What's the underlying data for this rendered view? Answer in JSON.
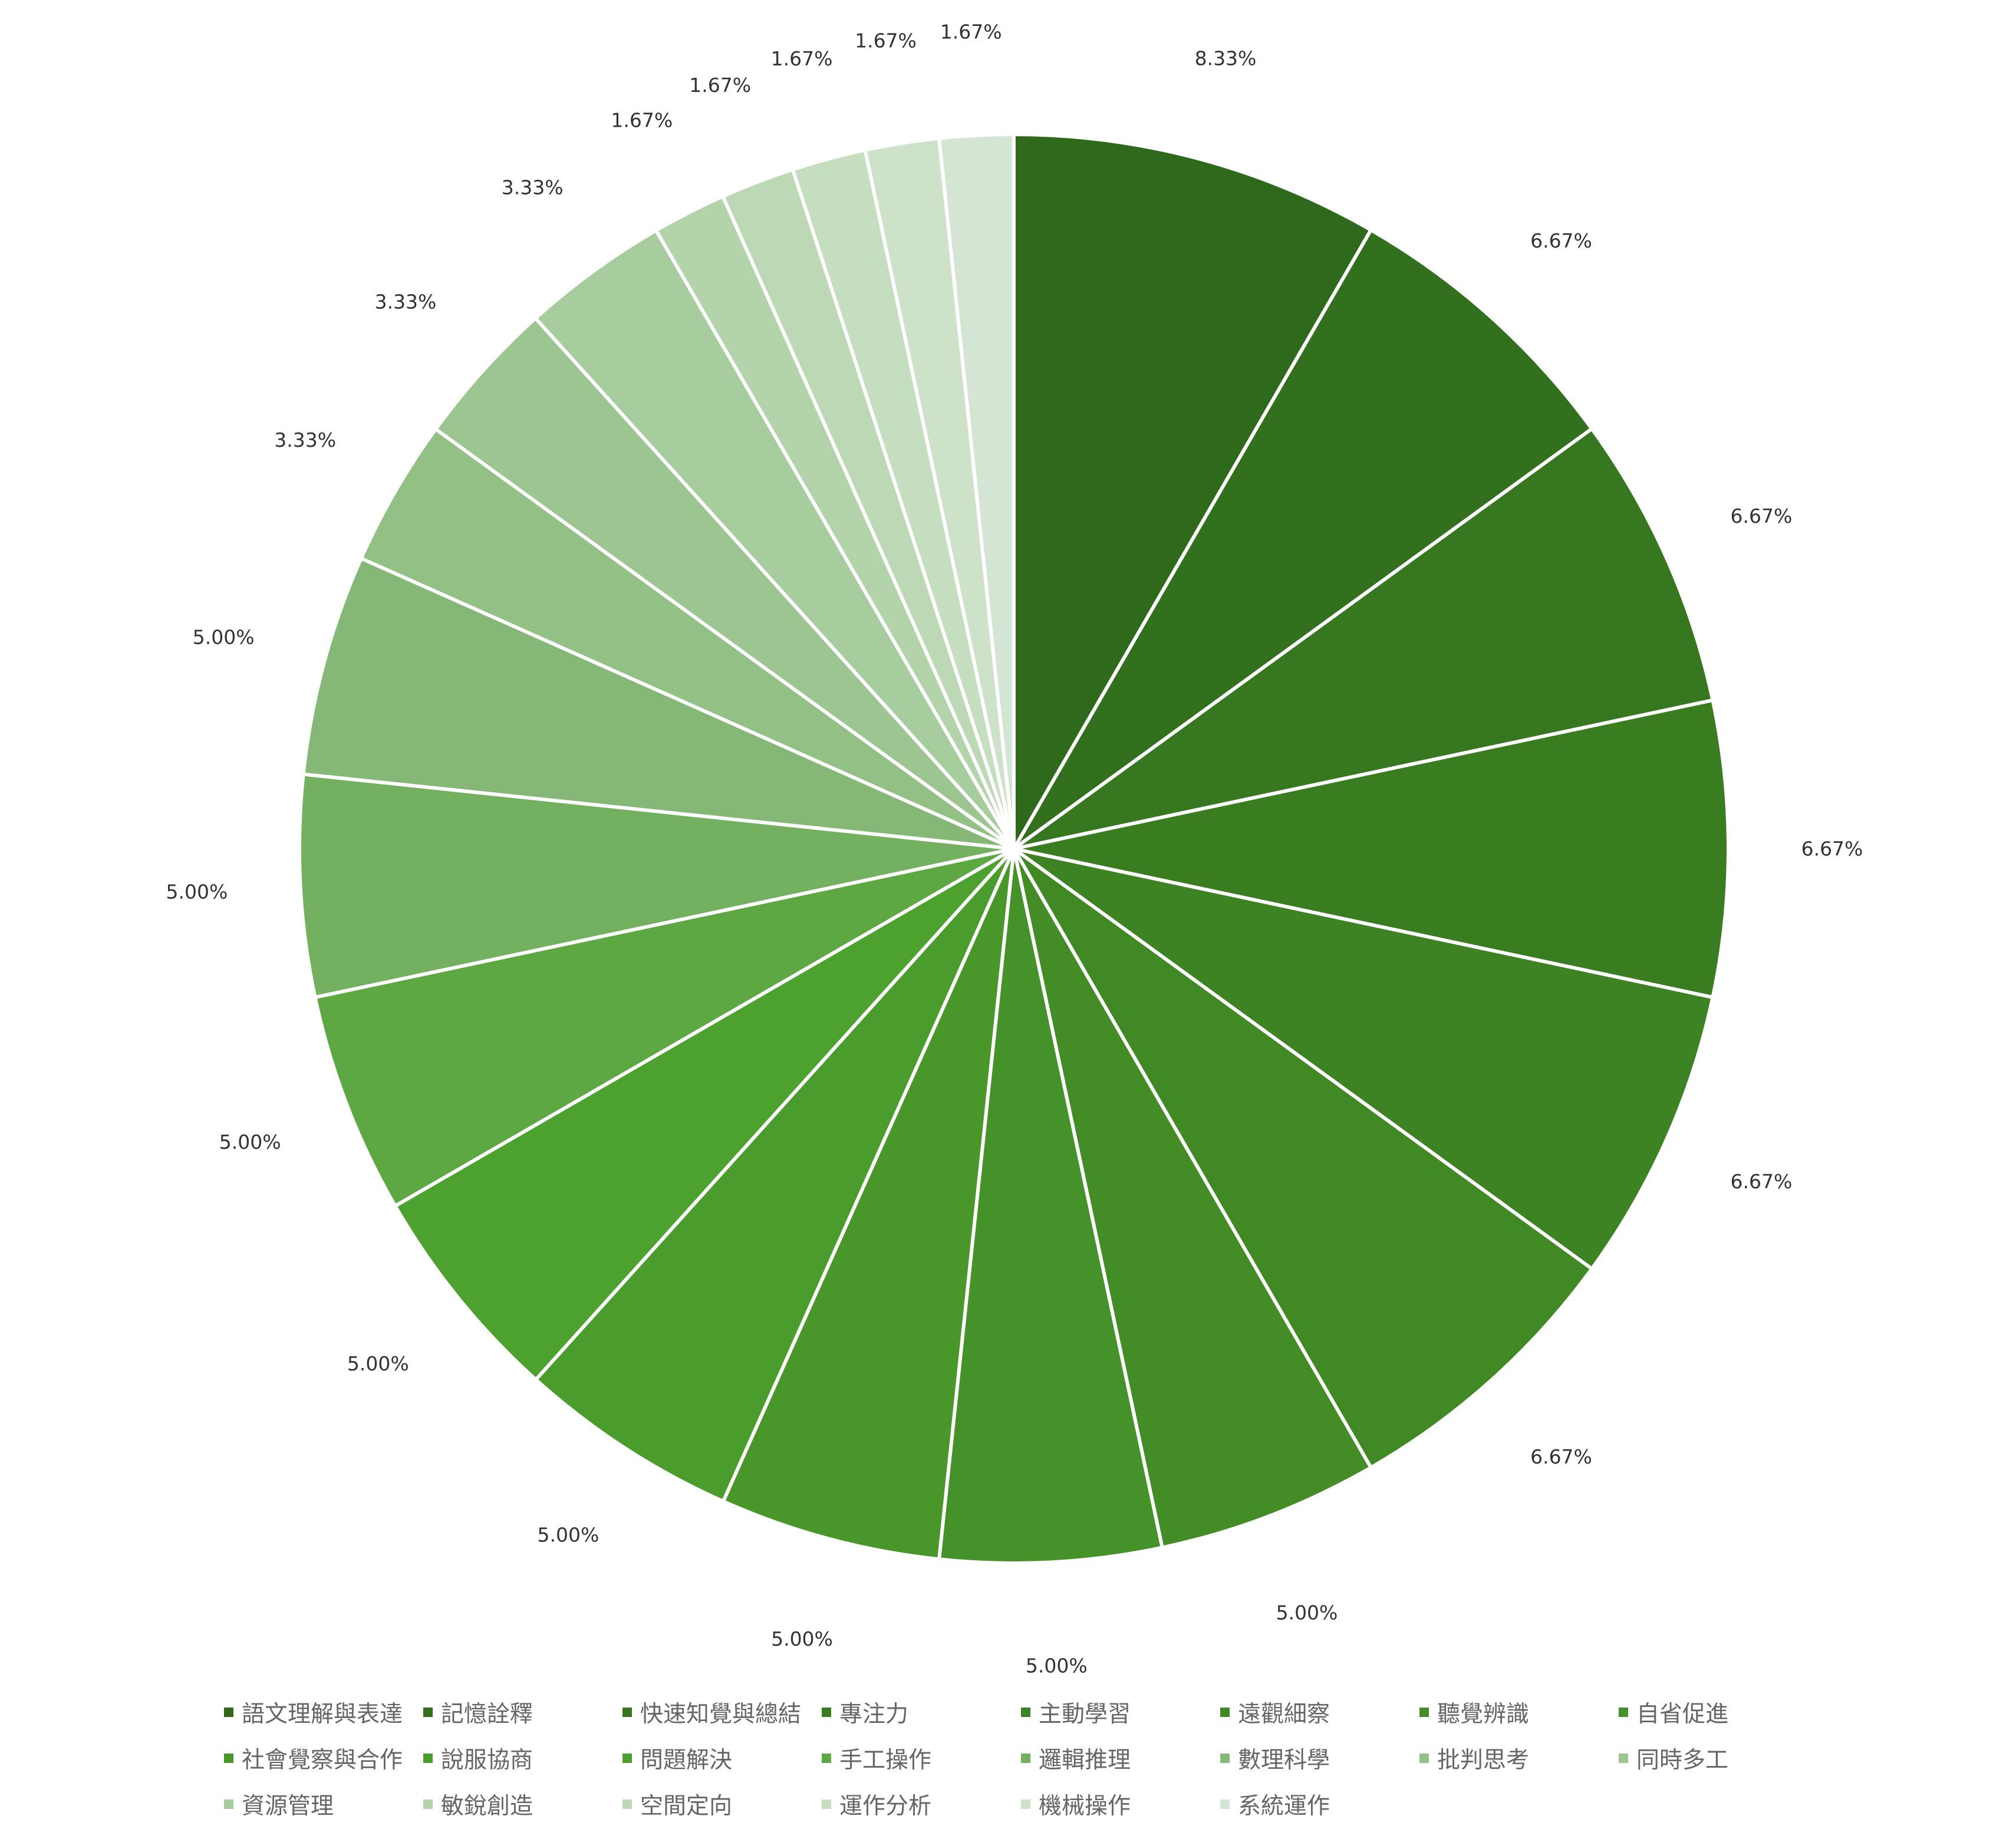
{
  "chart_data": {
    "type": "pie",
    "title": "",
    "slice_order": "clockwise-from-top",
    "legend_position": "bottom",
    "slices": [
      {
        "label": "語文理解與表達",
        "value": 8.33,
        "display": "8.33%",
        "color": "#2f6a1c"
      },
      {
        "label": "記憶詮釋",
        "value": 6.67,
        "display": "6.67%",
        "color": "#33701d"
      },
      {
        "label": "快速知覺與總結",
        "value": 6.67,
        "display": "6.67%",
        "color": "#37771f"
      },
      {
        "label": "專注力",
        "value": 6.67,
        "display": "6.67%",
        "color": "#3a7d21"
      },
      {
        "label": "主動學習",
        "value": 6.67,
        "display": "6.67%",
        "color": "#3d8323"
      },
      {
        "label": "遠觀細察",
        "value": 6.67,
        "display": "6.67%",
        "color": "#418925"
      },
      {
        "label": "聽覺辨識",
        "value": 5.0,
        "display": "5.00%",
        "color": "#448d26"
      },
      {
        "label": "自省促進",
        "value": 5.0,
        "display": "5.00%",
        "color": "#46922a"
      },
      {
        "label": "社會覺察與合作",
        "value": 5.0,
        "display": "5.00%",
        "color": "#49972b"
      },
      {
        "label": "說服協商",
        "value": 5.0,
        "display": "5.00%",
        "color": "#4a9c2c"
      },
      {
        "label": "問題解決",
        "value": 5.0,
        "display": "5.00%",
        "color": "#4da12e"
      },
      {
        "label": "手工操作",
        "value": 5.0,
        "display": "5.00%",
        "color": "#5ea843"
      },
      {
        "label": "邏輯推理",
        "value": 5.0,
        "display": "5.00%",
        "color": "#73b060"
      },
      {
        "label": "數理科學",
        "value": 5.0,
        "display": "5.00%",
        "color": "#85b876"
      },
      {
        "label": "批判思考",
        "value": 3.33,
        "display": "3.33%",
        "color": "#92c085"
      },
      {
        "label": "同時多工",
        "value": 3.33,
        "display": "3.33%",
        "color": "#9cc592"
      },
      {
        "label": "資源管理",
        "value": 3.33,
        "display": "3.33%",
        "color": "#a7cc9e"
      },
      {
        "label": "敏銳創造",
        "value": 1.67,
        "display": "1.67%",
        "color": "#b3d3aa"
      },
      {
        "label": "空間定向",
        "value": 1.67,
        "display": "1.67%",
        "color": "#bcd8b5"
      },
      {
        "label": "運作分析",
        "value": 1.67,
        "display": "1.67%",
        "color": "#c5dec0"
      },
      {
        "label": "機械操作",
        "value": 1.67,
        "display": "1.67%",
        "color": "#cde2c9"
      },
      {
        "label": "系統運作",
        "value": 1.67,
        "display": "1.67%",
        "color": "#d5e5d3"
      }
    ]
  }
}
